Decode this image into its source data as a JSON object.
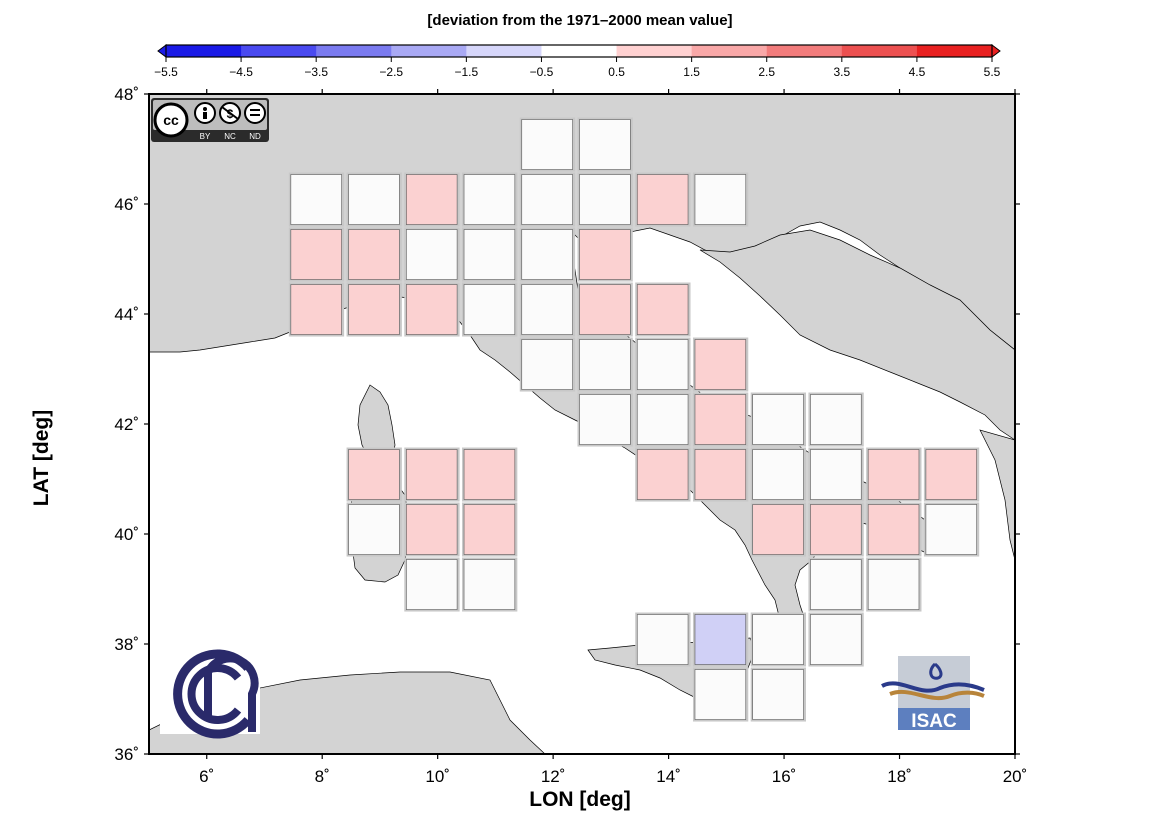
{
  "colorbar": {
    "title": "[deviation from the 1971–2000 mean value]",
    "tick_labels": [
      "−5.5",
      "−4.5",
      "−3.5",
      "−2.5",
      "−1.5",
      "−0.5",
      "0.5",
      "1.5",
      "2.5",
      "3.5",
      "4.5",
      "5.5"
    ],
    "colors": [
      "#1a1ae6",
      "#4a4af0",
      "#7b7bf0",
      "#a9a9f4",
      "#d6d6fa",
      "#ffffff",
      "#ffd1d1",
      "#f9a8a8",
      "#f27c7c",
      "#ec5050",
      "#e82020"
    ]
  },
  "axes": {
    "xlabel": "LON [deg]",
    "ylabel": "LAT [deg]",
    "x_range": [
      5,
      20
    ],
    "y_range": [
      36,
      48
    ],
    "x_ticks": [
      6,
      8,
      10,
      12,
      14,
      16,
      18,
      20
    ],
    "y_ticks": [
      36,
      38,
      40,
      42,
      44,
      46,
      48
    ],
    "x_tick_labels": [
      "6˚",
      "8˚",
      "10˚",
      "12˚",
      "14˚",
      "16˚",
      "18˚",
      "20˚"
    ],
    "y_tick_labels": [
      "36˚",
      "38˚",
      "40˚",
      "42˚",
      "44˚",
      "46˚",
      "48˚"
    ]
  },
  "colors": {
    "land": "#d3d3d3",
    "sea": "#ffffff",
    "white_cell": "#ffffff",
    "pink_cell": "#ffd1d1",
    "blue_cell": "#d0d0fa"
  },
  "grid_cells": [
    {
      "lon": 11,
      "lat": 47,
      "c": "w"
    },
    {
      "lon": 12,
      "lat": 47,
      "c": "w"
    },
    {
      "lon": 7,
      "lat": 46,
      "c": "w"
    },
    {
      "lon": 8,
      "lat": 46,
      "c": "w"
    },
    {
      "lon": 9,
      "lat": 46,
      "c": "p"
    },
    {
      "lon": 10,
      "lat": 46,
      "c": "w"
    },
    {
      "lon": 11,
      "lat": 46,
      "c": "w"
    },
    {
      "lon": 12,
      "lat": 46,
      "c": "w"
    },
    {
      "lon": 13,
      "lat": 46,
      "c": "p"
    },
    {
      "lon": 14,
      "lat": 46,
      "c": "w"
    },
    {
      "lon": 7,
      "lat": 45,
      "c": "p"
    },
    {
      "lon": 8,
      "lat": 45,
      "c": "p"
    },
    {
      "lon": 9,
      "lat": 45,
      "c": "w"
    },
    {
      "lon": 10,
      "lat": 45,
      "c": "w"
    },
    {
      "lon": 11,
      "lat": 45,
      "c": "w"
    },
    {
      "lon": 12,
      "lat": 45,
      "c": "p"
    },
    {
      "lon": 7,
      "lat": 44,
      "c": "p"
    },
    {
      "lon": 8,
      "lat": 44,
      "c": "p"
    },
    {
      "lon": 9,
      "lat": 44,
      "c": "p"
    },
    {
      "lon": 10,
      "lat": 44,
      "c": "w"
    },
    {
      "lon": 11,
      "lat": 44,
      "c": "w"
    },
    {
      "lon": 12,
      "lat": 44,
      "c": "p"
    },
    {
      "lon": 13,
      "lat": 44,
      "c": "p"
    },
    {
      "lon": 11,
      "lat": 43,
      "c": "w"
    },
    {
      "lon": 12,
      "lat": 43,
      "c": "w"
    },
    {
      "lon": 13,
      "lat": 43,
      "c": "w"
    },
    {
      "lon": 14,
      "lat": 43,
      "c": "p"
    },
    {
      "lon": 12,
      "lat": 42,
      "c": "w"
    },
    {
      "lon": 13,
      "lat": 42,
      "c": "w"
    },
    {
      "lon": 14,
      "lat": 42,
      "c": "p"
    },
    {
      "lon": 15,
      "lat": 42,
      "c": "w"
    },
    {
      "lon": 16,
      "lat": 42,
      "c": "w"
    },
    {
      "lon": 8,
      "lat": 41,
      "c": "p"
    },
    {
      "lon": 9,
      "lat": 41,
      "c": "p"
    },
    {
      "lon": 10,
      "lat": 41,
      "c": "p"
    },
    {
      "lon": 13,
      "lat": 41,
      "c": "p"
    },
    {
      "lon": 14,
      "lat": 41,
      "c": "p"
    },
    {
      "lon": 15,
      "lat": 41,
      "c": "w"
    },
    {
      "lon": 16,
      "lat": 41,
      "c": "w"
    },
    {
      "lon": 17,
      "lat": 41,
      "c": "p"
    },
    {
      "lon": 18,
      "lat": 41,
      "c": "p"
    },
    {
      "lon": 8,
      "lat": 40,
      "c": "w"
    },
    {
      "lon": 9,
      "lat": 40,
      "c": "p"
    },
    {
      "lon": 10,
      "lat": 40,
      "c": "p"
    },
    {
      "lon": 15,
      "lat": 40,
      "c": "p"
    },
    {
      "lon": 16,
      "lat": 40,
      "c": "p"
    },
    {
      "lon": 17,
      "lat": 40,
      "c": "p"
    },
    {
      "lon": 18,
      "lat": 40,
      "c": "w"
    },
    {
      "lon": 9,
      "lat": 39,
      "c": "w"
    },
    {
      "lon": 10,
      "lat": 39,
      "c": "w"
    },
    {
      "lon": 16,
      "lat": 39,
      "c": "w"
    },
    {
      "lon": 17,
      "lat": 39,
      "c": "w"
    },
    {
      "lon": 13,
      "lat": 38,
      "c": "w"
    },
    {
      "lon": 14,
      "lat": 38,
      "c": "b"
    },
    {
      "lon": 15,
      "lat": 38,
      "c": "w"
    },
    {
      "lon": 16,
      "lat": 38,
      "c": "w"
    },
    {
      "lon": 14,
      "lat": 37,
      "c": "w"
    },
    {
      "lon": 15,
      "lat": 37,
      "c": "w"
    }
  ],
  "badges": {
    "cc_top": "cc",
    "cc_bottom": [
      "BY",
      "NC",
      "ND"
    ],
    "isac": "ISAC"
  }
}
